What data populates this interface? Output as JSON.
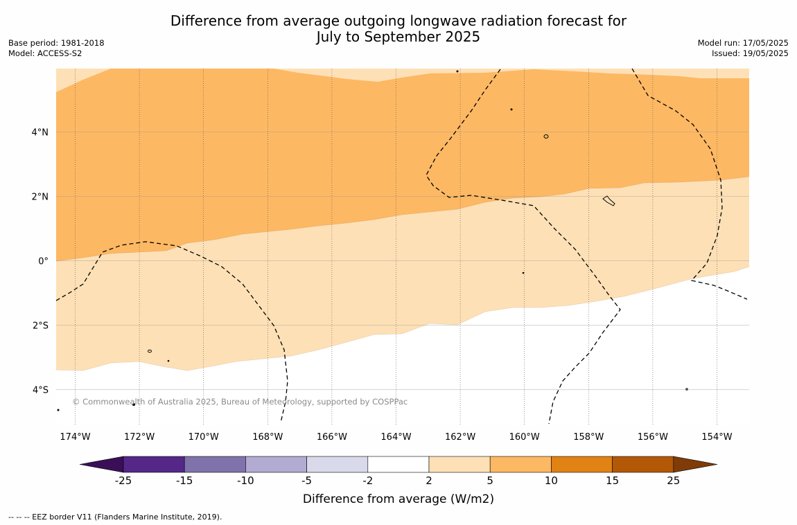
{
  "header": {
    "title_line1": "Difference from average outgoing longwave radiation forecast for",
    "title_line2": "July to September 2025",
    "base_period": "Base period: 1981-2018",
    "model": "Model: ACCESS-S2",
    "model_run": "Model run: 17/05/2025",
    "issued": "Issued: 19/05/2025"
  },
  "map": {
    "region": "Central Pacific (Kiribati / Line Islands)",
    "lon_ticks": [
      "174°W",
      "172°W",
      "170°W",
      "168°W",
      "166°W",
      "164°W",
      "162°W",
      "160°W",
      "158°W",
      "156°W",
      "154°W"
    ],
    "lat_ticks": [
      "4°N",
      "2°N",
      "0°",
      "2°S",
      "4°S"
    ],
    "copyright": "© Commonwealth of Australia 2025, Bureau of Meteorology, supported by COSPPac"
  },
  "legend": {
    "ticks": [
      "-25",
      "-15",
      "-10",
      "-5",
      "-2",
      "2",
      "5",
      "10",
      "15",
      "25"
    ],
    "colors": [
      "#3b0f58",
      "#542788",
      "#8073ac",
      "#b2abd2",
      "#d8daeb",
      "#ffffff",
      "#fee0b6",
      "#fdb863",
      "#e08214",
      "#b35806",
      "#7f3b08"
    ],
    "label": "Difference from average (W/m2)"
  },
  "footnote": "--  --  -- EEZ border V11 (Flanders Marine Institute, 2019)."
}
